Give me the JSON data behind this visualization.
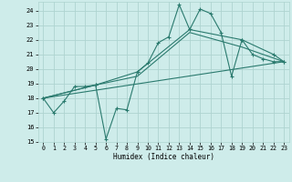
{
  "background_color": "#ceecea",
  "grid_color": "#aed4d0",
  "line_color": "#2a7a6e",
  "xlabel": "Humidex (Indice chaleur)",
  "xlim": [
    -0.5,
    23.5
  ],
  "ylim": [
    15,
    24.6
  ],
  "yticks": [
    15,
    16,
    17,
    18,
    19,
    20,
    21,
    22,
    23,
    24
  ],
  "xticks": [
    0,
    1,
    2,
    3,
    4,
    5,
    6,
    7,
    8,
    9,
    10,
    11,
    12,
    13,
    14,
    15,
    16,
    17,
    18,
    19,
    20,
    21,
    22,
    23
  ],
  "line1_x": [
    0,
    1,
    2,
    3,
    4,
    5,
    6,
    7,
    8,
    9,
    10,
    11,
    12,
    13,
    14,
    15,
    16,
    17,
    18,
    19,
    20,
    21,
    22,
    23
  ],
  "line1_y": [
    18.0,
    17.0,
    17.8,
    18.8,
    18.8,
    18.9,
    15.2,
    17.3,
    17.2,
    19.8,
    20.4,
    21.8,
    22.2,
    24.4,
    22.7,
    24.1,
    23.8,
    22.5,
    19.5,
    22.0,
    21.0,
    20.7,
    20.5,
    20.5
  ],
  "line2_x": [
    0,
    5,
    9,
    14,
    19,
    22,
    23
  ],
  "line2_y": [
    18.0,
    18.9,
    19.8,
    22.7,
    22.0,
    21.0,
    20.5
  ],
  "line3_x": [
    0,
    23
  ],
  "line3_y": [
    18.0,
    20.5
  ],
  "line4_x": [
    0,
    5,
    9,
    14,
    19,
    23
  ],
  "line4_y": [
    18.0,
    18.9,
    19.5,
    22.5,
    21.5,
    20.5
  ]
}
